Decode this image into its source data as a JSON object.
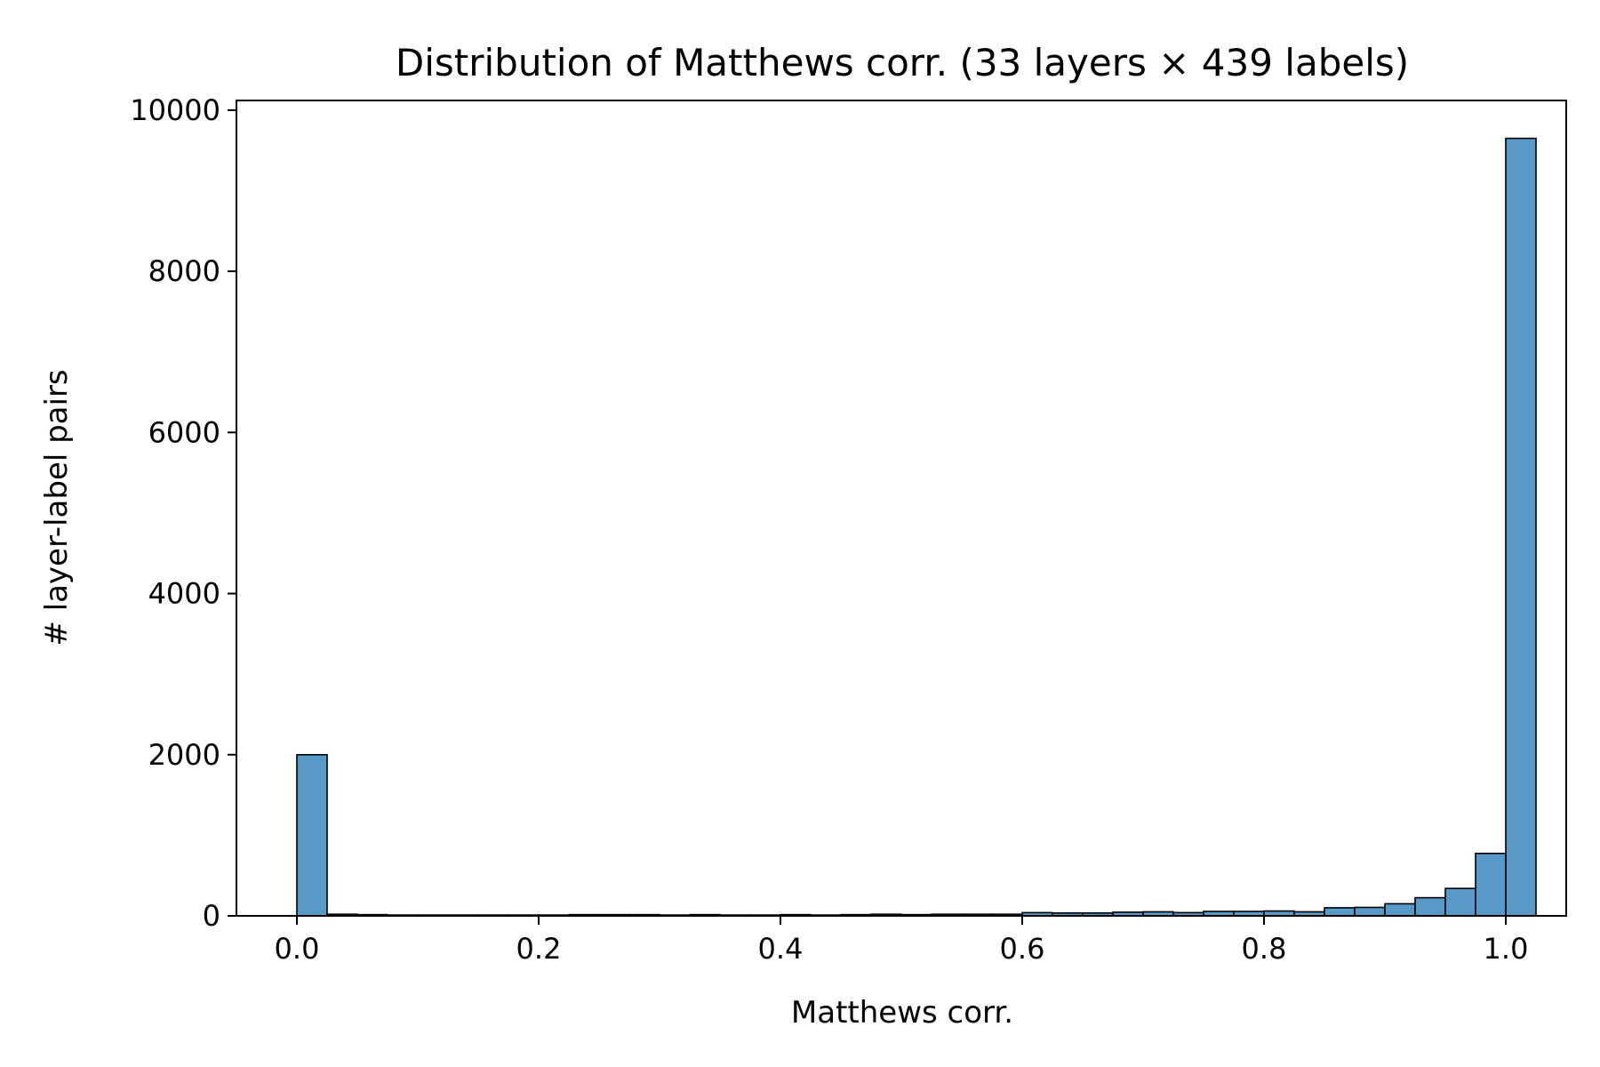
{
  "chart_data": {
    "type": "bar",
    "title": "Distribution of Matthews corr. (33 layers × 439 labels)",
    "xlabel": "Matthews corr.",
    "ylabel": "# layer-label pairs",
    "xlim": [
      -0.05,
      1.05
    ],
    "ylim": [
      0,
      10120
    ],
    "x_ticks": [
      0.0,
      0.2,
      0.4,
      0.6,
      0.8,
      1.0
    ],
    "x_tick_labels": [
      "0.0",
      "0.2",
      "0.4",
      "0.6",
      "0.8",
      "1.0"
    ],
    "y_ticks": [
      0,
      2000,
      4000,
      6000,
      8000,
      10000
    ],
    "y_tick_labels": [
      "0",
      "2000",
      "4000",
      "6000",
      "8000",
      "10000"
    ],
    "bin_edges": [
      0.0,
      0.025,
      0.05,
      0.075,
      0.1,
      0.125,
      0.15,
      0.175,
      0.2,
      0.225,
      0.25,
      0.275,
      0.3,
      0.325,
      0.35,
      0.375,
      0.4,
      0.425,
      0.45,
      0.475,
      0.5,
      0.525,
      0.55,
      0.575,
      0.6,
      0.625,
      0.65,
      0.675,
      0.7,
      0.725,
      0.75,
      0.775,
      0.8,
      0.825,
      0.85,
      0.875,
      0.9,
      0.925,
      0.95,
      0.975,
      1.0
    ],
    "counts": [
      2000,
      20,
      15,
      10,
      10,
      10,
      10,
      10,
      10,
      15,
      15,
      15,
      10,
      15,
      10,
      10,
      15,
      10,
      15,
      20,
      15,
      20,
      20,
      20,
      40,
      35,
      35,
      45,
      50,
      40,
      55,
      55,
      60,
      50,
      100,
      105,
      150,
      225,
      340,
      775,
      9650
    ],
    "bar_color": "#5799c7",
    "edge_color": "#000000",
    "grid": false
  }
}
